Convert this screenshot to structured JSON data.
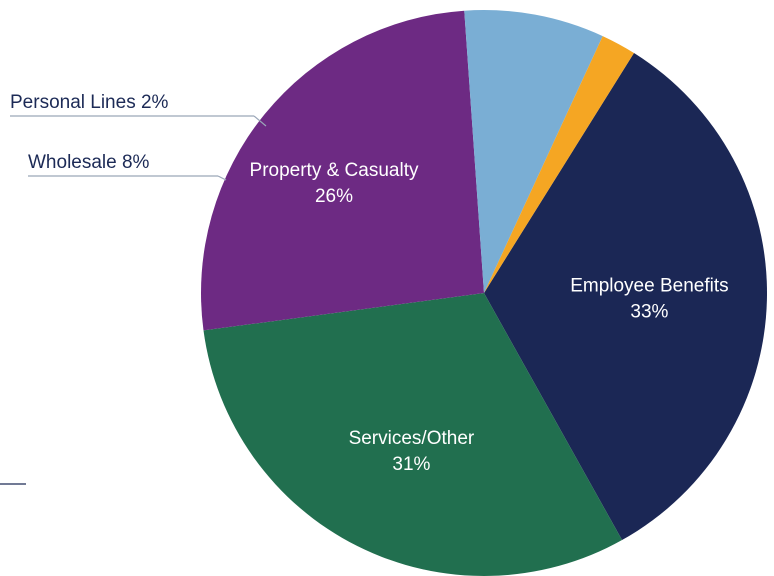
{
  "chart_data": {
    "type": "pie",
    "slices": [
      {
        "name": "Employee Benefits",
        "value": 33,
        "label": "33%",
        "color": "#1b2755"
      },
      {
        "name": "Services/Other",
        "value": 31,
        "label": "31%",
        "color": "#216f4f"
      },
      {
        "name": "Property & Casualty",
        "value": 26,
        "label": "26%",
        "color": "#6d2a83"
      },
      {
        "name": "Wholesale",
        "value": 8,
        "label": "8%",
        "color": "#7aaed4"
      },
      {
        "name": "Personal Lines",
        "value": 2,
        "label": "2%",
        "color": "#f5a623"
      }
    ],
    "callouts": {
      "personal_lines": "Personal Lines 2%",
      "wholesale": "Wholesale 8%"
    },
    "legend": "none"
  }
}
